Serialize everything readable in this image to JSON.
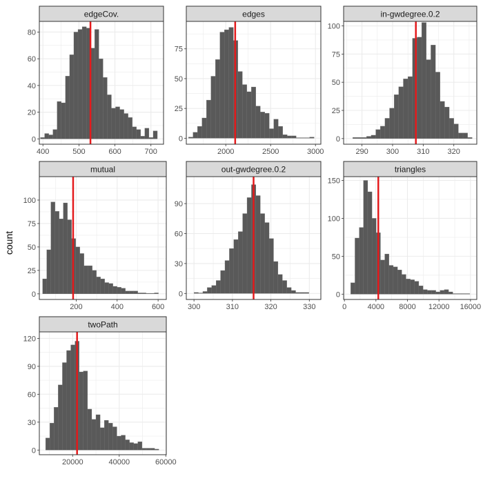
{
  "y_axis_label": "count",
  "colors": {
    "bar": "#595959",
    "vline": "#e41a1c",
    "strip": "#d9d9d9",
    "grid": "#ebebeb",
    "axis_text": "#4d4d4d"
  },
  "chart_data": [
    {
      "type": "bar",
      "title": "edgeCov.",
      "xlim": [
        390,
        735
      ],
      "ylim": [
        -4,
        88
      ],
      "bin_start": 393,
      "bin_width": 11.6,
      "counts": [
        1,
        4,
        3,
        7,
        28,
        27,
        47,
        63,
        80,
        82,
        84,
        83,
        68,
        82,
        60,
        46,
        33,
        23,
        24,
        22,
        19,
        16,
        9,
        7,
        2,
        8,
        1,
        6
      ],
      "xticks": [
        400,
        500,
        600,
        700
      ],
      "yticks": [
        0,
        20,
        40,
        60,
        80
      ],
      "vline": 532,
      "ylabel": "count"
    },
    {
      "type": "bar",
      "title": "edges",
      "xlim": [
        1560,
        3060
      ],
      "ylim": [
        -5,
        98
      ],
      "bin_start": 1585,
      "bin_width": 50,
      "counts": [
        1,
        5,
        10,
        17,
        32,
        52,
        66,
        89,
        91,
        93,
        82,
        56,
        45,
        39,
        43,
        27,
        22,
        21,
        8,
        16,
        10,
        3,
        2,
        2,
        0,
        0,
        0,
        1
      ],
      "xticks": [
        2000,
        2500,
        3000
      ],
      "yticks": [
        0,
        25,
        50,
        75
      ],
      "vline": 2105,
      "ylabel": "count"
    },
    {
      "type": "bar",
      "title": "in-gwdegree.0.2",
      "xlim": [
        284,
        327.5
      ],
      "ylim": [
        -5,
        104
      ],
      "bin_start": 287,
      "bin_width": 1.5,
      "counts": [
        1,
        1,
        1,
        2,
        3,
        8,
        11,
        18,
        27,
        39,
        46,
        53,
        55,
        89,
        90,
        103,
        70,
        83,
        59,
        33,
        28,
        18,
        13,
        5,
        5,
        1
      ],
      "xticks": [
        290,
        300,
        310,
        320
      ],
      "yticks": [
        0,
        25,
        50,
        75,
        100
      ],
      "vline": 307.6,
      "ylabel": "count"
    },
    {
      "type": "bar",
      "title": "mutual",
      "xlim": [
        20,
        640
      ],
      "ylim": [
        -6,
        125
      ],
      "bin_start": 36,
      "bin_width": 20.2,
      "counts": [
        16,
        47,
        98,
        88,
        80,
        97,
        79,
        59,
        50,
        43,
        30,
        30,
        25,
        18,
        16,
        12,
        11,
        8,
        7,
        6,
        3,
        3,
        3,
        1,
        1,
        0,
        0,
        1
      ],
      "xticks": [
        200,
        400,
        600
      ],
      "yticks": [
        0,
        25,
        50,
        75,
        100
      ],
      "vline": 185,
      "ylabel": "count"
    },
    {
      "type": "bar",
      "title": "out-gwdegree.0.2",
      "xlim": [
        298,
        333
      ],
      "ylim": [
        -6,
        117
      ],
      "bin_start": 300,
      "bin_width": 1.15,
      "counts": [
        1,
        0,
        2,
        6,
        8,
        13,
        23,
        33,
        45,
        54,
        62,
        80,
        96,
        109,
        98,
        80,
        71,
        55,
        32,
        19,
        13,
        6,
        3,
        1,
        1,
        1
      ],
      "xticks": [
        300,
        310,
        320,
        330
      ],
      "yticks": [
        0,
        30,
        60,
        90
      ],
      "vline": 315.5,
      "ylabel": "count"
    },
    {
      "type": "bar",
      "title": "triangles",
      "xlim": [
        -100,
        16800
      ],
      "ylim": [
        -7,
        155
      ],
      "bin_start": 800,
      "bin_width": 540,
      "counts": [
        15,
        74,
        88,
        150,
        135,
        100,
        81,
        45,
        53,
        38,
        36,
        32,
        26,
        20,
        19,
        17,
        11,
        6,
        5,
        5,
        3,
        5,
        6,
        3,
        0,
        0,
        0,
        0
      ],
      "xticks": [
        0,
        4000,
        8000,
        12000,
        16000
      ],
      "yticks": [
        0,
        50,
        100,
        150
      ],
      "vline": 4300,
      "ylabel": "count"
    },
    {
      "type": "bar",
      "title": "twoPath",
      "xlim": [
        5700,
        60200
      ],
      "ylim": [
        -5,
        127
      ],
      "bin_start": 8400,
      "bin_width": 1800,
      "counts": [
        13,
        29,
        46,
        70,
        94,
        107,
        113,
        117,
        84,
        85,
        44,
        33,
        38,
        24,
        32,
        29,
        25,
        15,
        16,
        11,
        8,
        7,
        9,
        2,
        2,
        2,
        1
      ],
      "xticks": [
        20000,
        40000,
        60000
      ],
      "yticks": [
        0,
        30,
        60,
        90,
        120
      ],
      "vline": 21900,
      "ylabel": "count"
    }
  ]
}
